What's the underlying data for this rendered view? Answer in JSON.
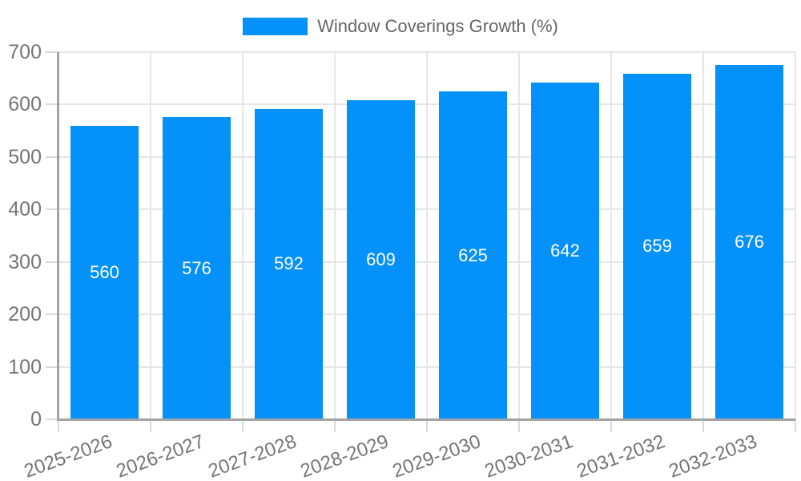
{
  "chart_data": {
    "type": "bar",
    "title": "Window Coverings Growth (%)",
    "categories": [
      "2025-2026",
      "2026-2027",
      "2027-2028",
      "2028-2029",
      "2029-2030",
      "2030-2031",
      "2031-2032",
      "2032-2033"
    ],
    "values": [
      560,
      576,
      592,
      609,
      625,
      642,
      659,
      676
    ],
    "value_labels": [
      "560",
      "576",
      "592",
      "609",
      "625",
      "642",
      "659",
      "676"
    ],
    "xlabel": "",
    "ylabel": "",
    "ylim": [
      0,
      700
    ],
    "ytick_step": 100,
    "ytick_labels": [
      "0",
      "100",
      "200",
      "300",
      "400",
      "500",
      "600",
      "700"
    ],
    "grid": "on",
    "legend_position": "top-center",
    "bar_labels_inside": true,
    "colors": {
      "bar": "#0591fa",
      "bar_label": "#ffffff",
      "legend_text": "#666666",
      "tick_label": "#757575",
      "gridline": "#e6e6e6",
      "tick_mark": "#d9d9d9",
      "axis_line": "#a3a3a3",
      "background": "#ffffff"
    }
  }
}
